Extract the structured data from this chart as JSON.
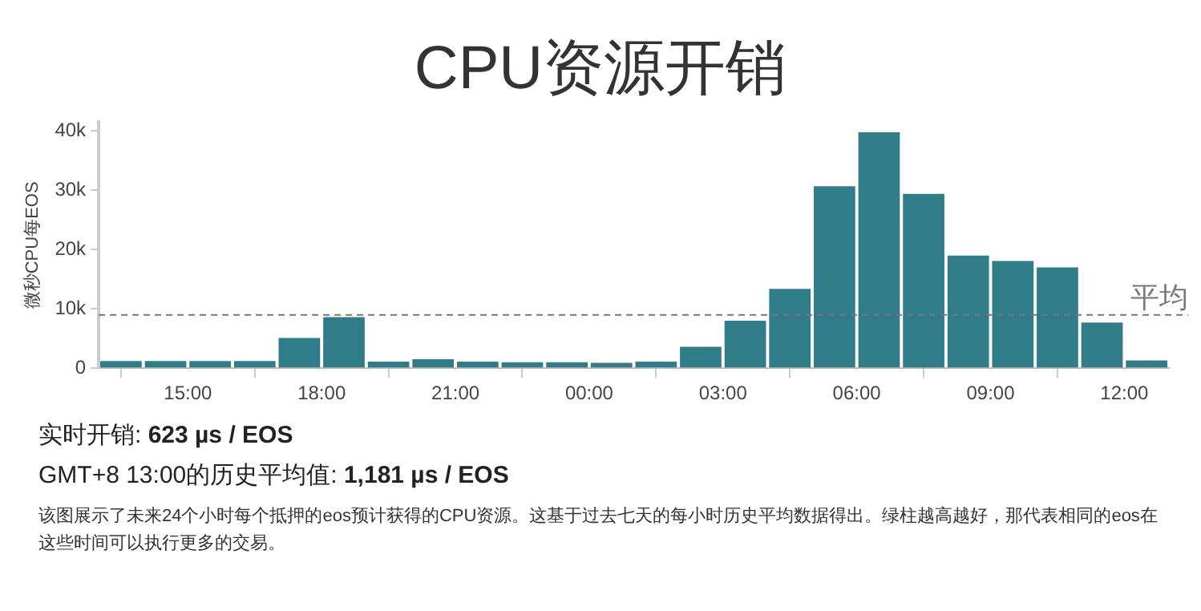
{
  "chart_data": {
    "type": "bar",
    "title": "CPU资源开销",
    "ylabel": "微秒CPU每EOS",
    "x": [
      "--01-01T13:30",
      "--01-01T14:30",
      "--01-01T15:30",
      "--01-01T16:30",
      "--01-01T17:30",
      "--01-01T18:30",
      "--01-01T19:30",
      "--01-01T20:30",
      "--01-01T21:30",
      "--01-01T22:30",
      "--01-01T23:30",
      "--01-02T00:30",
      "--01-02T01:30",
      "--01-02T02:30",
      "--01-02T03:30",
      "--01-02T04:30",
      "--01-02T05:30",
      "--01-02T06:30",
      "--01-02T07:30",
      "--01-02T08:30",
      "--01-02T09:30",
      "--01-02T10:30",
      "--01-02T11:30",
      "--01-02T12:30"
    ],
    "values": [
      1200,
      1200,
      1200,
      1200,
      5100,
      8600,
      1100,
      1500,
      1100,
      1000,
      1000,
      900,
      1100,
      3600,
      8000,
      13400,
      30700,
      39800,
      29400,
      19000,
      18100,
      17000,
      7700,
      1300
    ],
    "color": "#307c89",
    "xlim": [
      "--01-01T13:00",
      "--01-02T13:00"
    ],
    "xticks": [
      {
        "value": "--01-01T15:00",
        "label": "15:00"
      },
      {
        "value": "--01-01T18:00",
        "label": "18:00"
      },
      {
        "value": "--01-01T21:00",
        "label": "21:00"
      },
      {
        "value": "--01-02T00:00",
        "label": "00:00"
      },
      {
        "value": "--01-02T03:00",
        "label": "03:00"
      },
      {
        "value": "--01-02T06:00",
        "label": "06:00"
      },
      {
        "value": "--01-02T09:00",
        "label": "09:00"
      },
      {
        "value": "--01-02T12:00",
        "label": "12:00"
      }
    ],
    "ylim": [
      0,
      41500
    ],
    "yticks": [
      0,
      {
        "value": 10000,
        "label": "10k"
      },
      {
        "value": 20000,
        "label": "20k"
      },
      {
        "value": 30000,
        "label": "30k"
      },
      {
        "value": 40000,
        "label": "40k"
      }
    ],
    "grid": false,
    "legend": false,
    "ref_lines": [
      {
        "axis": "y",
        "value": 9000,
        "label": "平均",
        "color": "#777777",
        "line_style": "dashed"
      }
    ],
    "annotations": [
      "实时开销: 623 µs / EOS",
      "GMT+8 13:00的历史平均值: 1,181 µs / EOS",
      "该图展示了未来24个小时每个抵押的eos预计获得的CPU资源。这基于过去七天的每小时历史平均数据得出。绿柱越高越好，那代表相同的eos在这些时间可以执行更多的交易。"
    ]
  }
}
